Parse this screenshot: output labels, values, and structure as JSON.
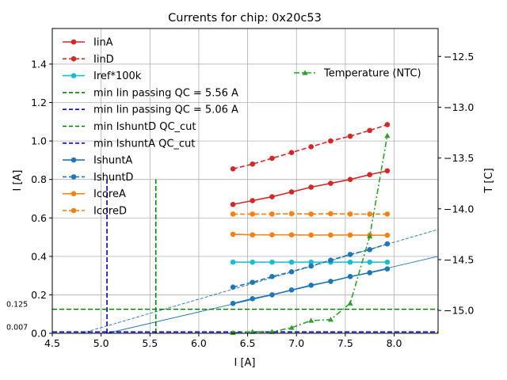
{
  "chart_data": {
    "type": "line",
    "title": "Currents for chip: 0x20c53",
    "xlabel": "I [A]",
    "ylabel": "I [A]",
    "y2label": "T [C]",
    "xlim": [
      4.5,
      8.45
    ],
    "ylim": [
      0,
      1.585
    ],
    "y2lim": [
      -15.225,
      -12.225
    ],
    "grid": true,
    "xticks": [
      "4.5",
      "5.0",
      "5.5",
      "6.0",
      "6.5",
      "7.0",
      "7.5",
      "8.0"
    ],
    "yticks": [
      "0.0",
      "0.2",
      "0.4",
      "0.6",
      "0.8",
      "1.0",
      "1.2",
      "1.4"
    ],
    "y2ticks": [
      "−15.0",
      "−14.5",
      "−14.0",
      "−13.5",
      "−13.0",
      "−12.5"
    ],
    "x": [
      6.35,
      6.55,
      6.75,
      6.95,
      7.15,
      7.35,
      7.55,
      7.75,
      7.93
    ],
    "series": [
      {
        "name": "IinA",
        "color": "#d62728",
        "dash": "solid",
        "marker": "circle",
        "values": [
          0.67,
          0.69,
          0.71,
          0.735,
          0.76,
          0.78,
          0.8,
          0.825,
          0.845
        ]
      },
      {
        "name": "IinD",
        "color": "#d62728",
        "dash": "dashed",
        "marker": "circle",
        "values": [
          0.855,
          0.88,
          0.91,
          0.94,
          0.97,
          1.0,
          1.025,
          1.055,
          1.085
        ]
      },
      {
        "name": "Iref*100k",
        "color": "#17becf",
        "dash": "solid",
        "marker": "circle",
        "values": [
          0.37,
          0.37,
          0.37,
          0.37,
          0.37,
          0.37,
          0.37,
          0.37,
          0.37
        ]
      },
      {
        "name": "IshuntA",
        "color": "#1f77b4",
        "dash": "solid",
        "marker": "circle",
        "values": [
          0.155,
          0.18,
          0.2,
          0.225,
          0.25,
          0.27,
          0.295,
          0.315,
          0.335
        ]
      },
      {
        "name": "IshuntD",
        "color": "#1f77b4",
        "dash": "dashed",
        "marker": "circle",
        "values": [
          0.24,
          0.265,
          0.295,
          0.32,
          0.35,
          0.38,
          0.41,
          0.435,
          0.465
        ]
      },
      {
        "name": "IcoreA",
        "color": "#ff7f0e",
        "dash": "solid",
        "marker": "circle",
        "values": [
          0.515,
          0.512,
          0.512,
          0.512,
          0.511,
          0.511,
          0.511,
          0.51,
          0.51
        ]
      },
      {
        "name": "IcoreD",
        "color": "#ff7f0e",
        "dash": "dashed",
        "marker": "circle",
        "values": [
          0.62,
          0.62,
          0.62,
          0.622,
          0.62,
          0.622,
          0.62,
          0.62,
          0.62
        ]
      }
    ],
    "temperature_series": {
      "name": "Temperature (NTC)",
      "color": "#2ca02c",
      "dash": "dashdot",
      "marker": "triangle",
      "x": [
        6.35,
        6.55,
        6.75,
        6.95,
        7.15,
        7.35,
        7.55,
        7.75,
        7.93
      ],
      "values": [
        -15.22,
        -15.21,
        -15.21,
        -15.17,
        -15.1,
        -15.09,
        -14.93,
        -14.27,
        -13.28
      ]
    },
    "fit_lines": [
      {
        "color": "#1f77b4",
        "dash": "solid",
        "points": [
          [
            5.06,
            0.0
          ],
          [
            8.45,
            0.4
          ]
        ]
      },
      {
        "color": "#1f77b4",
        "dash": "dashed",
        "points": [
          [
            4.8,
            0.0
          ],
          [
            8.45,
            0.54
          ]
        ]
      }
    ],
    "reference_lines": [
      {
        "name": "min Iin passing QC = 5.56 A",
        "orientation": "vertical",
        "value": 5.56,
        "color": "#008000",
        "dash": "dashed",
        "extent": [
          0,
          0.8
        ]
      },
      {
        "name": "min Iin passing QC = 5.06 A",
        "orientation": "vertical",
        "value": 5.06,
        "color": "#0000cd",
        "dash": "dashed",
        "extent": [
          0,
          0.8
        ]
      },
      {
        "name": "min IshuntD QC_cut",
        "orientation": "horizontal",
        "value": 0.125,
        "color": "#008000",
        "dash": "dashed",
        "label": "0.125"
      },
      {
        "name": "min IshuntA QC_cut",
        "orientation": "horizontal",
        "value": 0.007,
        "color": "#0000cd",
        "dash": "dashed",
        "label": "0.007"
      }
    ],
    "legend_placement": "top-left",
    "legend2_placement": "top-right"
  }
}
